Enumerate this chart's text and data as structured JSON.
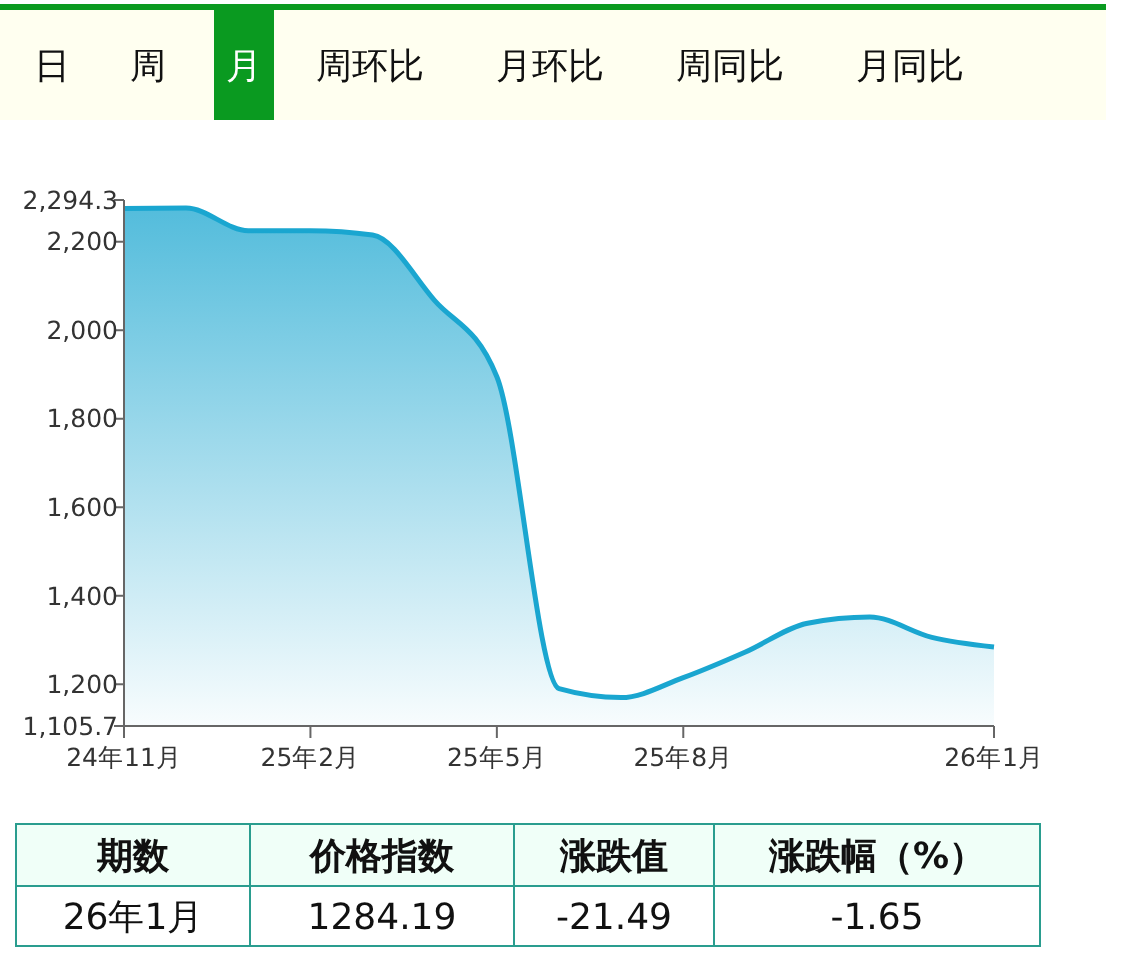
{
  "chart_data": [
    {
      "type": "other",
      "annotations": [
        "日",
        "周",
        "月",
        "周环比",
        "月环比",
        "周同比",
        "月同比"
      ]
    },
    {
      "type": "area",
      "categories": [
        "24年11月",
        null,
        null,
        "25年2月",
        null,
        null,
        "25年5月",
        null,
        null,
        "25年8月",
        null,
        null,
        null,
        null,
        "26年1月"
      ],
      "series": [
        {
          "color": "#1aa6d0",
          "values": [
            2275,
            2276,
            2225,
            2225,
            2215,
            2067,
            1895,
            1190,
            1170,
            1215,
            1273,
            1338,
            1352,
            1306,
            1284
          ]
        }
      ],
      "ylim": [
        1105.7,
        2294.3
      ],
      "yticks": [
        {
          "value": 1105.7,
          "label": "1,105.7"
        },
        {
          "value": 1200,
          "label": "1,200"
        },
        {
          "value": 1400,
          "label": "1,400"
        },
        {
          "value": 1600,
          "label": "1,600"
        },
        {
          "value": 1800,
          "label": "1,800"
        },
        {
          "value": 2000,
          "label": "2,000"
        },
        {
          "value": 2200,
          "label": "2,200"
        },
        {
          "value": 2294.3,
          "label": "2,294.3"
        }
      ],
      "grid": false
    },
    {
      "type": "other",
      "annotations": [
        "期数",
        "价格指数",
        "涨跌值",
        "涨跌幅（%）",
        "26年1月",
        "1284.19",
        "-21.49",
        "-1.65"
      ]
    }
  ]
}
